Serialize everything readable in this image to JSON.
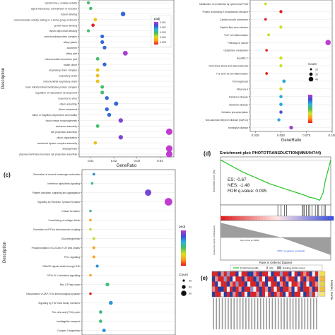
{
  "chart_data": [
    {
      "id": "a",
      "type": "scatter",
      "panel_label": "",
      "title": "",
      "xlabel": "GeneRatio",
      "ylabel": "Description",
      "xlim": [
        0.005,
        0.046
      ],
      "x_ticks": [
        0.01,
        0.02,
        0.03,
        0.04
      ],
      "x_tick_labels": [
        "0.01",
        "0.02",
        "0.03",
        "0.04"
      ],
      "categories": [
        "cytochrome-c oxidase activity",
        "signal transducer, downstream of receptor",
        "tubulin binding",
        "oxidoreductase activity, acting on a heme group of donors",
        "growth factor binding",
        "dynein light chain binding",
        "mitochondrial protein complex",
        "ciliary plasm",
        "axoneme",
        "ciliary part",
        "mitochondrial membrane part",
        "motile cilium",
        "respiratory chain complex",
        "respiratory chain",
        "mitochondrial respiratory chain",
        "inner mitochondrial membrane protein complex",
        "regulation of vasculature development",
        "response to virus",
        "cilium assembly",
        "cilium movement",
        "cilium or flagellum-dependent cell motility",
        "blood vessel morphogenesis",
        "axoneme assembly",
        "cell projection assembly",
        "cilium organization",
        "axonemal dynein complex assembly",
        "angiogenesis",
        "plasma membrane bounded cell projection assembly"
      ],
      "x": [
        0.009,
        0.01,
        0.024,
        0.012,
        0.011,
        0.009,
        0.015,
        0.015,
        0.016,
        0.025,
        0.013,
        0.016,
        0.013,
        0.013,
        0.013,
        0.015,
        0.015,
        0.017,
        0.021,
        0.017,
        0.018,
        0.023,
        0.013,
        0.044,
        0.023,
        0.012,
        0.044,
        0.044
      ],
      "count": [
        11,
        12,
        28,
        13,
        12,
        10,
        17,
        17,
        18,
        30,
        15,
        18,
        14,
        14,
        15,
        16,
        17,
        19,
        24,
        19,
        20,
        26,
        15,
        50,
        26,
        13,
        50,
        50
      ],
      "p_adjust": [
        0.002,
        0.002,
        0.001,
        0.003,
        0.004,
        0.002,
        0.001,
        0.001,
        0.001,
        0.0003,
        0.002,
        0.001,
        0.003,
        0.003,
        0.003,
        0.002,
        0.002,
        0.001,
        0.001,
        0.001,
        0.001,
        0.0005,
        0.002,
        0.0002,
        0.0005,
        0.003,
        0.0002,
        0.0002
      ],
      "legend_color_title": "padj",
      "legend_color_ticks": [
        "0.001",
        "0.002",
        "0.003",
        "0.004",
        "0.005"
      ]
    },
    {
      "id": "b",
      "type": "scatter",
      "panel_label": "",
      "title": "",
      "xlabel": "GeneRatio",
      "ylabel": "",
      "xlim": [
        0.02,
        0.1
      ],
      "x_ticks": [
        0.025,
        0.05,
        0.075,
        0.1
      ],
      "x_tick_labels": [
        "0.025",
        "0.050",
        "0.075",
        "0.100"
      ],
      "categories": [
        "Metabolism of xenobiotics by cytochrome P450",
        "Protein processing in endoplasmic reticulum",
        "Cardiac muscle contraction",
        "Epstein-Barr virus infection",
        "Th17 cell differentiation",
        "Pathways in cancer",
        "Glutathione metabolism",
        "Hepatitis C",
        "Fluid shear stress and atherosclerosis",
        "Th1 and Th2 cell differentiation",
        "Thermogenesis",
        "Influenza A",
        "Parkinson disease",
        "Alzheimer disease",
        "Oxidative phosphorylation",
        "Non-alcoholic fatty liver disease (NAFLD)",
        "Huntington disease"
      ],
      "x": [
        0.035,
        0.05,
        0.035,
        0.05,
        0.038,
        0.096,
        0.036,
        0.05,
        0.05,
        0.036,
        0.053,
        0.05,
        0.05,
        0.05,
        0.05,
        0.048,
        0.06
      ],
      "count": [
        12,
        18,
        12,
        18,
        14,
        42,
        12,
        19,
        18,
        13,
        21,
        18,
        19,
        20,
        19,
        18,
        25
      ],
      "p_adjust": [
        0.02,
        0.03,
        0.03,
        0.02,
        0.02,
        0.001,
        0.03,
        0.02,
        0.02,
        0.03,
        0.01,
        0.02,
        0.01,
        0.01,
        0.005,
        0.01,
        0.002
      ],
      "legend_size_title": "Count",
      "legend_size_values": [
        20,
        30,
        40
      ]
    },
    {
      "id": "c",
      "type": "scatter",
      "panel_label": "(c)",
      "title": "",
      "xlabel": "",
      "ylabel": "Description",
      "xlim": [
        0.005,
        0.06
      ],
      "categories": [
        "Generation of second messenger molecules",
        "Interferon alpha/beta signaling",
        "Platelet activation, signaling and aggregation",
        "Signaling by Receptor Tyrosine Kinases",
        "Cristae formation",
        "Crosslinking of collagen fibrils",
        "Formation of ATP by chemiosmotic coupling",
        "Gluconeogenesis",
        "Phosphorylation of CD3 and TCR zeta chains",
        "PD-1 signaling",
        "NRAGE signals death through JNK",
        "GP1b-IX-V activation signalling",
        "Rho GTPase cycle",
        "Translocation of ZAP-70 to Immunological synapse",
        "Signaling by TGF-beta family members",
        "The citric acid (TCA) cycle",
        "Intraflagellar transport",
        "Complex I biogenesis"
      ],
      "x": [
        0.012,
        0.011,
        0.044,
        0.056,
        0.01,
        0.01,
        0.01,
        0.012,
        0.012,
        0.012,
        0.014,
        0.01,
        0.02,
        0.01,
        0.022,
        0.016,
        0.016,
        0.018
      ],
      "count": [
        10,
        10,
        40,
        50,
        9,
        9,
        9,
        11,
        11,
        11,
        13,
        9,
        19,
        9,
        20,
        15,
        15,
        17
      ],
      "p_adjust": [
        0.02,
        0.03,
        0.01,
        0.005,
        0.03,
        0.05,
        0.04,
        0.04,
        0.05,
        0.05,
        0.02,
        0.05,
        0.03,
        0.06,
        0.02,
        0.03,
        0.03,
        0.02
      ],
      "legend_color_title": "padj",
      "legend_size_title": "Count",
      "legend_size_values": [
        30,
        60,
        90
      ]
    },
    {
      "id": "d",
      "type": "line",
      "panel_label": "(d)",
      "title": "Enrichment plot: PHOTOTRANSDUCTION(MMU04744)",
      "ylabel": "Enrichment score (ES)",
      "ylabel_lower": "Ranked list metric (PreRanked)",
      "xlabel": "Rank in Ordered Dataset",
      "ylim": [
        -0.75,
        0.05
      ],
      "stats": {
        "es": "ES: -0.67",
        "nes": "NES: -1.48",
        "fdr": "FDR q-value: 0.095"
      },
      "zero_cross_label": "Zero cross at 15000",
      "bottom_label": "'ETPL' (negatively correlated)",
      "legend": [
        "Enrichment profile",
        "Hits",
        "Ranking metric scores"
      ],
      "x": [
        0,
        0.05,
        0.1,
        0.15,
        0.2,
        0.25,
        0.3,
        0.35,
        0.4,
        0.45,
        0.5,
        0.55,
        0.6,
        0.65,
        0.7,
        0.75,
        0.78,
        0.8,
        0.83,
        0.86,
        0.88,
        0.9,
        0.93,
        0.95,
        1.0
      ],
      "y": [
        0,
        -0.05,
        -0.1,
        -0.15,
        -0.2,
        -0.24,
        -0.28,
        -0.32,
        -0.36,
        -0.4,
        -0.43,
        -0.46,
        -0.49,
        -0.52,
        -0.55,
        -0.58,
        -0.6,
        -0.62,
        -0.63,
        -0.64,
        -0.66,
        -0.67,
        -0.55,
        -0.35,
        0
      ],
      "hits": [
        0.52,
        0.55,
        0.58,
        0.6,
        0.74,
        0.75,
        0.76,
        0.78,
        0.8,
        0.81,
        0.83,
        0.86,
        0.88,
        0.89,
        0.92,
        0.94,
        0.95
      ]
    },
    {
      "id": "e",
      "type": "heatmap",
      "panel_label": "(e)",
      "title": "",
      "side_label": "Sample | Name",
      "n_rows": 5,
      "n_cols": 36,
      "row_labels": [
        "",
        "",
        "",
        "",
        ""
      ],
      "col_labels": [],
      "values": [
        [
          1,
          1,
          -1,
          0.5,
          1,
          -0.5,
          1,
          1,
          -1,
          0,
          1,
          1,
          -1,
          -1,
          0.5,
          1,
          -1,
          1,
          1,
          0,
          -1,
          1,
          1,
          -0.5,
          1,
          1,
          -1,
          0,
          1,
          -1,
          1,
          0.5,
          1,
          -1,
          0,
          1
        ],
        [
          -1,
          0.5,
          1,
          1,
          -0.5,
          1,
          -1,
          0,
          1,
          1,
          -1,
          0.5,
          1,
          1,
          -1,
          -0.5,
          1,
          0,
          -1,
          1,
          1,
          -1,
          0,
          1,
          -1,
          0.5,
          1,
          1,
          -1,
          0,
          1,
          -1,
          0.5,
          1,
          1,
          -1
        ],
        [
          1,
          -1,
          0,
          1,
          1,
          -1,
          0.5,
          1,
          -0.5,
          1,
          1,
          -1,
          0,
          1,
          1,
          -1,
          0.5,
          1,
          -1,
          0,
          1,
          1,
          -1,
          0.5,
          1,
          -1,
          0,
          1,
          1,
          0.5,
          -1,
          1,
          0,
          -1,
          1,
          0.5
        ],
        [
          0.5,
          1,
          -1,
          -1,
          1,
          0,
          1,
          -1,
          1,
          0.5,
          -1,
          1,
          1,
          -0.5,
          0,
          1,
          -1,
          1,
          0.5,
          -1,
          1,
          0,
          1,
          -1,
          1,
          1,
          0.5,
          -1,
          0,
          1,
          -1,
          1,
          1,
          0.5,
          -1,
          1
        ],
        [
          -1,
          1,
          1,
          0,
          -1,
          1,
          -1,
          0.5,
          1,
          -1,
          1,
          0,
          -1,
          1,
          1,
          0.5,
          -1,
          1,
          0,
          1,
          -1,
          1,
          0.5,
          1,
          -1,
          0,
          1,
          -1,
          1,
          1,
          0,
          -1,
          1,
          -0.5,
          1,
          0
        ]
      ],
      "legend_swatches": [
        "#f4e04d",
        "#f6b73c",
        "#e8d24a",
        "#f0c040",
        "#f7e17a"
      ]
    }
  ]
}
